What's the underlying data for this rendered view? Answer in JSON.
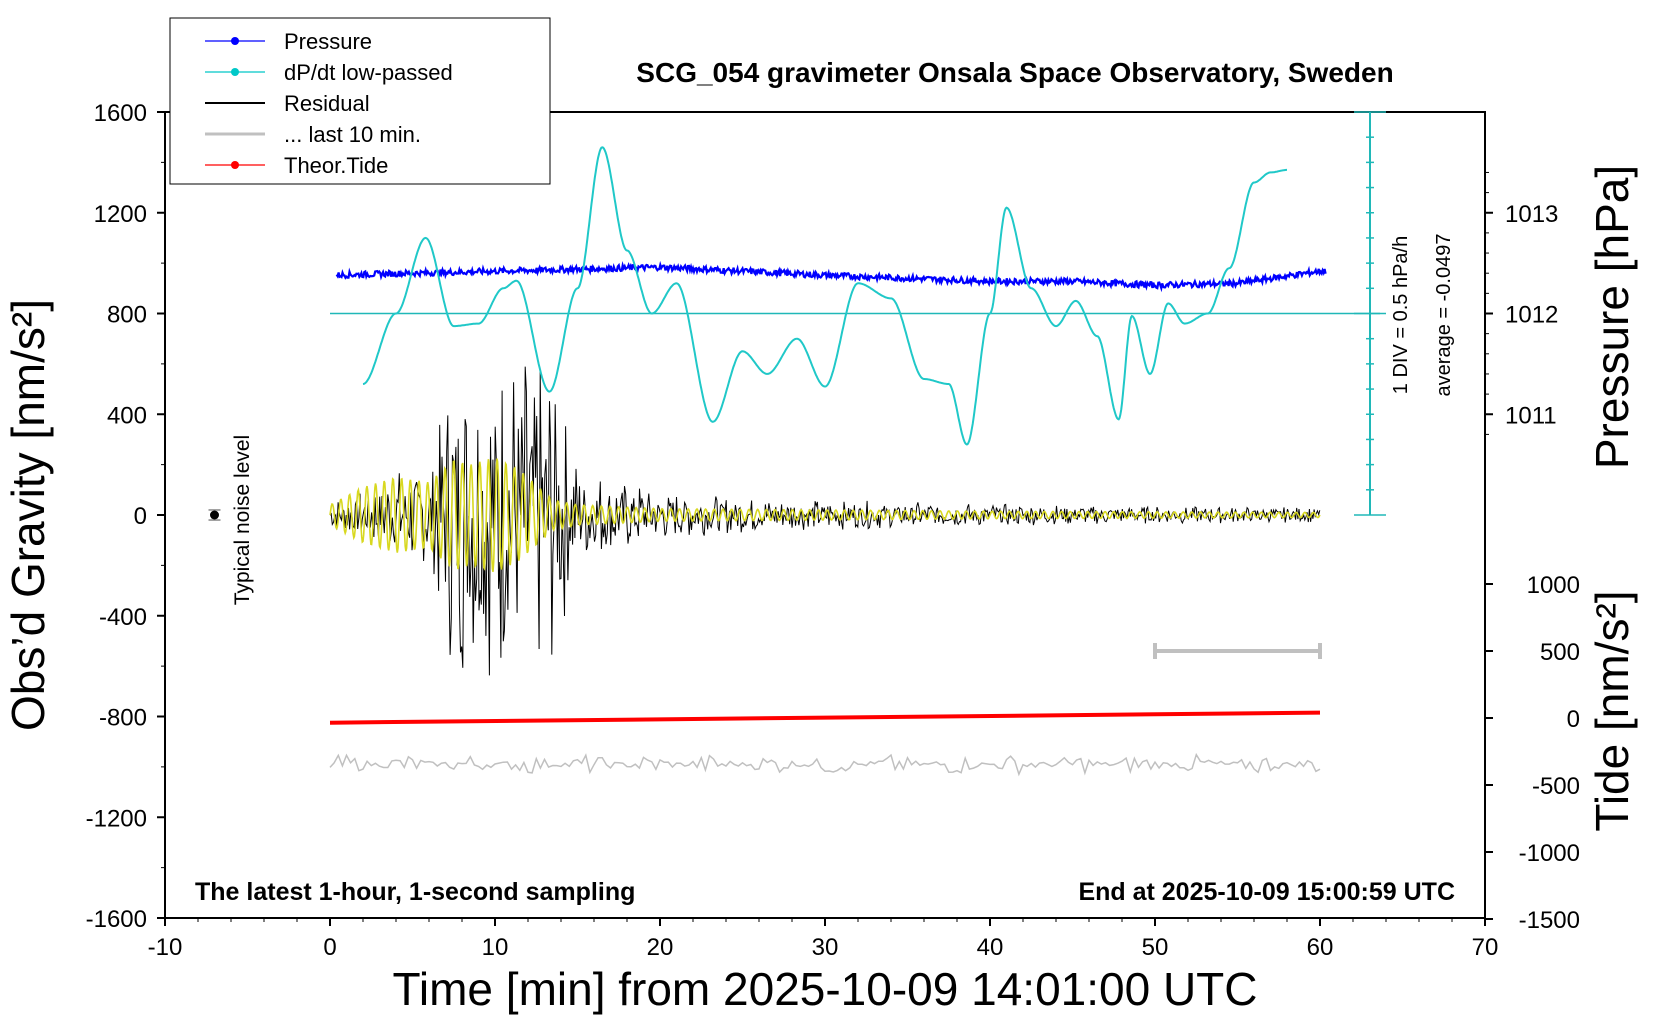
{
  "chart_data": {
    "type": "line",
    "title": "SCG_054 gravimeter Onsala Space Observatory, Sweden",
    "xlabel": "Time [min] from 2025-10-09 14:01:00 UTC",
    "ylabel_left": "Obs’d Gravity [nm/s²]",
    "ylabel_right_top": "Pressure [hPa]",
    "ylabel_right_bottom": "Tide [nm/s²]",
    "xlim": [
      -10,
      70
    ],
    "ylim": [
      -1600,
      1600
    ],
    "x_ticks": [
      "-10",
      "0",
      "10",
      "20",
      "30",
      "40",
      "50",
      "60",
      "70"
    ],
    "y_ticks_left": [
      "1600",
      "1200",
      "800",
      "400",
      "0",
      "-400",
      "-800",
      "-1200",
      "-1600"
    ],
    "pressure_axis": {
      "ticks": [
        "1013",
        "1012",
        "1011"
      ],
      "values": [
        1013,
        1012,
        1011
      ]
    },
    "tide_axis": {
      "ticks": [
        "1000",
        "500",
        "0",
        "-500",
        "-1000",
        "-1500"
      ],
      "values": [
        1000,
        500,
        0,
        -500,
        -1000,
        -1500
      ]
    },
    "legend": {
      "position": "top-left",
      "entries": [
        {
          "label": "Pressure",
          "color": "#0000ff",
          "marker": "dot"
        },
        {
          "label": "dP/dt low-passed",
          "color": "#00c8c8",
          "marker": "dot"
        },
        {
          "label": "Residual",
          "color": "#000000",
          "marker": "none"
        },
        {
          "label": "... last 10 min.",
          "color": "#c0c0c0",
          "marker": "none"
        },
        {
          "label": "Theor.Tide",
          "color": "#ff0000",
          "marker": "dot"
        }
      ]
    },
    "annotations": {
      "noise_label": "Typical noise level",
      "scale_div": "1 DIV = 0.5 hPa/h",
      "scale_avg": "average = -0.0497",
      "bottom_left": "The latest 1-hour, 1-second sampling",
      "bottom_right": "End at 2025-10-09 15:00:59 UTC"
    },
    "series": [
      {
        "name": "Pressure",
        "color": "#0000ff",
        "axis": "pressure",
        "x": [
          0,
          5,
          10,
          15,
          20,
          25,
          30,
          35,
          40,
          45,
          50,
          55,
          60
        ],
        "y": [
          1012.38,
          1012.4,
          1012.42,
          1012.44,
          1012.46,
          1012.42,
          1012.38,
          1012.35,
          1012.32,
          1012.32,
          1012.28,
          1012.3,
          1012.42
        ]
      },
      {
        "name": "dP/dt low-passed",
        "color": "#00c8c8",
        "axis": "gravity",
        "x": [
          2,
          4,
          5.8,
          7.5,
          9,
          10.5,
          11.3,
          13.3,
          15,
          16.5,
          18,
          19.5,
          21,
          23.2,
          25,
          26.5,
          28.3,
          30,
          32,
          34,
          36,
          37.5,
          38.6,
          40,
          41,
          42.5,
          44,
          45.2,
          46.5,
          47.8,
          48.6,
          49.7,
          50.8,
          51.8,
          53.2,
          54.5,
          56,
          57,
          58
        ],
        "y": [
          520,
          800,
          1100,
          750,
          760,
          900,
          930,
          490,
          900,
          1460,
          1050,
          800,
          920,
          370,
          650,
          560,
          700,
          510,
          920,
          860,
          540,
          520,
          280,
          800,
          1220,
          900,
          750,
          850,
          710,
          380,
          790,
          560,
          840,
          760,
          800,
          980,
          1320,
          1360,
          1370
        ]
      },
      {
        "name": "Residual",
        "color": "#000000",
        "axis": "gravity",
        "envelope": {
          "x": [
            0,
            2,
            4,
            6,
            7.5,
            8.5,
            10,
            11.5,
            13.5,
            15,
            17,
            20,
            25,
            30,
            40,
            50,
            60
          ],
          "amplitude": [
            60,
            100,
            180,
            200,
            650,
            620,
            680,
            640,
            620,
            200,
            160,
            100,
            70,
            60,
            45,
            35,
            30
          ]
        }
      },
      {
        "name": "Band-passed",
        "color": "#d8d820",
        "axis": "gravity",
        "envelope": {
          "x": [
            0,
            2,
            4,
            6,
            7.5,
            8.5,
            10,
            11.5,
            13.5,
            15,
            20,
            30,
            40,
            60
          ],
          "amplitude": [
            40,
            110,
            150,
            130,
            220,
            200,
            230,
            180,
            60,
            40,
            25,
            20,
            15,
            10
          ]
        }
      },
      {
        "name": "... last 10 min.",
        "color": "#c0c0c0",
        "axis": "gravity",
        "offset": -990,
        "amplitude": 40
      },
      {
        "name": "Theor.Tide",
        "color": "#ff0000",
        "axis": "tide",
        "x": [
          0,
          60
        ],
        "y": [
          -35,
          40
        ]
      }
    ],
    "noise_bar": {
      "x": -7,
      "y": 0,
      "err": 20
    },
    "ten_min_bar": {
      "x": [
        50,
        60
      ],
      "tide_y": 500
    }
  }
}
